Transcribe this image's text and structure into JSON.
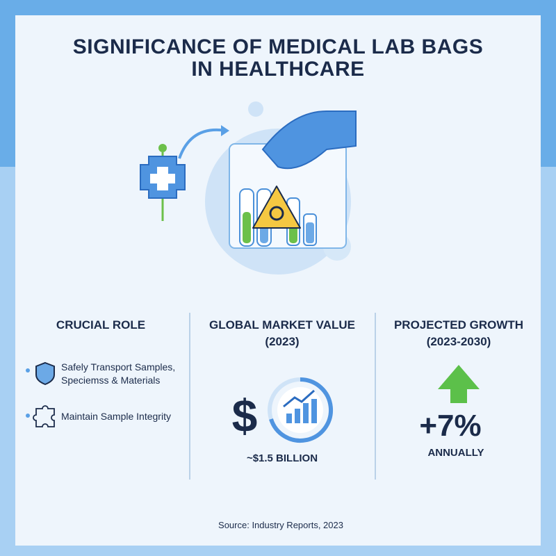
{
  "header": {
    "title_lines": [
      "SIGNIFICANCE OF MEDICAL LAB BAGS",
      "IN HEALTHCARE"
    ]
  },
  "columns": [
    {
      "heading_lines": [
        "CRUCIAL ROLE"
      ],
      "items": [
        {
          "lines": [
            "Safely Transport Samples,",
            "Speciemss & Materials"
          ]
        },
        {
          "lines": [
            "Maintain Sample Integrity"
          ]
        }
      ]
    },
    {
      "heading_lines": [
        "GLOBAL MARKET VALUE",
        "(2023)"
      ],
      "symbol": "$",
      "value": "~$1.5 BILLION"
    },
    {
      "heading_lines": [
        "PROJECTED GROWTH",
        "(2023-2030)"
      ],
      "value": "+7%",
      "note": "ANNUALLY"
    }
  ],
  "footer": {
    "source": "Source: Industry Reports, 2023"
  }
}
